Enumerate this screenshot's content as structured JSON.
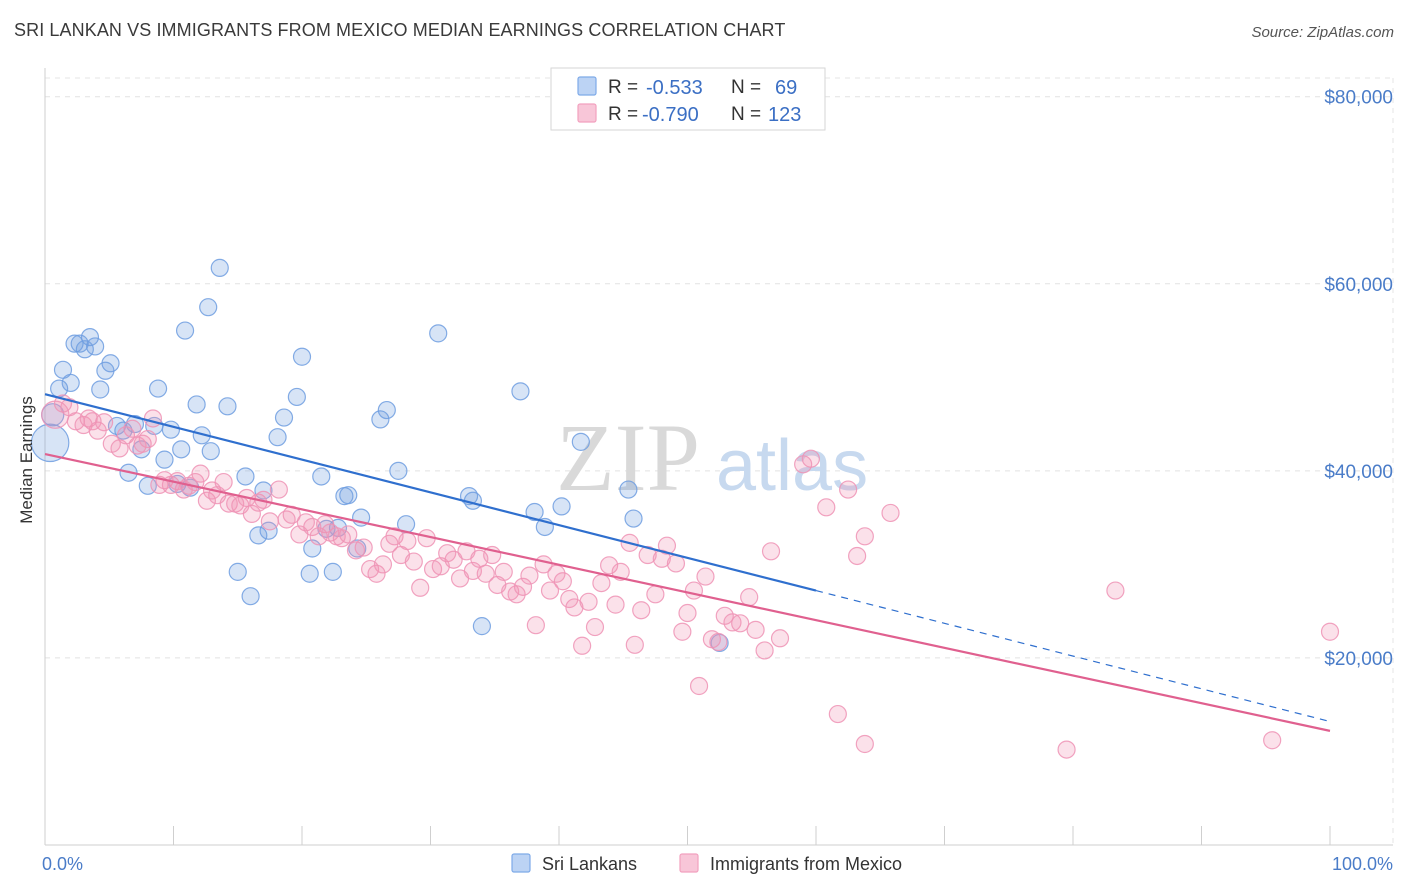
{
  "header": {
    "title": "SRI LANKAN VS IMMIGRANTS FROM MEXICO MEDIAN EARNINGS CORRELATION CHART",
    "source": "Source: ZipAtlas.com"
  },
  "watermark": {
    "zip": "ZIP",
    "atlas": "atlas"
  },
  "legend": {
    "r_label": "R =",
    "n_label": "N =",
    "rows": [
      {
        "r": "-0.533",
        "n": "69",
        "color": "#7eaae8"
      },
      {
        "r": "-0.790",
        "n": "123",
        "color": "#f2a1bf"
      }
    ]
  },
  "chart_data": {
    "type": "scatter",
    "title": "SRI LANKAN VS IMMIGRANTS FROM MEXICO MEDIAN EARNINGS CORRELATION CHART",
    "xlabel": "",
    "ylabel": "Median Earnings",
    "xlim": [
      0,
      100
    ],
    "ylim": [
      0,
      82000
    ],
    "x_tick_labels": [
      "0.0%",
      "100.0%"
    ],
    "y_ticks": [
      20000,
      40000,
      60000,
      80000
    ],
    "y_tick_labels": [
      "$20,000",
      "$40,000",
      "$60,000",
      "$80,000"
    ],
    "grid": true,
    "legend_position": "top-center",
    "series": [
      {
        "name": "Sri Lankans",
        "color": "#6f9ee0",
        "line_color": "#2f6fce",
        "trend": {
          "x0": 0,
          "y0": 48200,
          "x1": 60,
          "y1": 27200,
          "dashed_to_x": 100,
          "dashed_to_y": 13200
        },
        "points": [
          [
            0.4,
            43000,
            2.2
          ],
          [
            0.6,
            46000,
            1.3
          ],
          [
            1.1,
            48800,
            1.0
          ],
          [
            1.4,
            50800,
            1.0
          ],
          [
            2.0,
            49400,
            1.0
          ],
          [
            2.3,
            53600,
            1.0
          ],
          [
            2.7,
            53600,
            1.0
          ],
          [
            3.1,
            53000,
            1.0
          ],
          [
            3.5,
            54300,
            1.0
          ],
          [
            3.9,
            53300,
            1.0
          ],
          [
            4.3,
            48700,
            1.0
          ],
          [
            4.7,
            50700,
            1.0
          ],
          [
            5.1,
            51500,
            1.0
          ],
          [
            5.6,
            44800,
            1.0
          ],
          [
            6.1,
            44300,
            1.0
          ],
          [
            6.5,
            39800,
            1.0
          ],
          [
            7.0,
            45000,
            1.0
          ],
          [
            7.5,
            42300,
            1.0
          ],
          [
            8.0,
            38400,
            1.0
          ],
          [
            8.5,
            44800,
            1.0
          ],
          [
            8.8,
            48800,
            1.0
          ],
          [
            9.3,
            41200,
            1.0
          ],
          [
            9.8,
            44400,
            1.0
          ],
          [
            10.3,
            38600,
            1.0
          ],
          [
            10.6,
            42300,
            1.0
          ],
          [
            10.9,
            55000,
            1.0
          ],
          [
            11.3,
            38200,
            1.0
          ],
          [
            11.8,
            47100,
            1.0
          ],
          [
            12.2,
            43800,
            1.0
          ],
          [
            12.7,
            57500,
            1.0
          ],
          [
            12.9,
            42100,
            1.0
          ],
          [
            13.6,
            61700,
            1.0
          ],
          [
            14.2,
            46900,
            1.0
          ],
          [
            15.0,
            29200,
            1.0
          ],
          [
            15.6,
            39400,
            1.0
          ],
          [
            16.0,
            26600,
            1.0
          ],
          [
            16.6,
            33100,
            1.0
          ],
          [
            17.0,
            37900,
            1.0
          ],
          [
            17.4,
            33600,
            1.0
          ],
          [
            18.1,
            43600,
            1.0
          ],
          [
            18.6,
            45700,
            1.0
          ],
          [
            19.6,
            47900,
            1.0
          ],
          [
            20.0,
            52200,
            1.0
          ],
          [
            20.6,
            29000,
            1.0
          ],
          [
            20.8,
            31700,
            1.0
          ],
          [
            21.5,
            39400,
            1.0
          ],
          [
            21.9,
            33800,
            1.0
          ],
          [
            22.4,
            29200,
            1.0
          ],
          [
            22.8,
            33900,
            1.0
          ],
          [
            23.3,
            37300,
            1.0
          ],
          [
            23.6,
            37400,
            1.0
          ],
          [
            24.3,
            31700,
            1.0
          ],
          [
            24.6,
            35000,
            1.0
          ],
          [
            26.1,
            45500,
            1.0
          ],
          [
            26.6,
            46500,
            1.0
          ],
          [
            27.5,
            40000,
            1.0
          ],
          [
            28.1,
            34300,
            1.0
          ],
          [
            30.6,
            54700,
            1.0
          ],
          [
            33.0,
            37300,
            1.0
          ],
          [
            33.3,
            36800,
            1.0
          ],
          [
            34.0,
            23400,
            1.0
          ],
          [
            37.0,
            48500,
            1.0
          ],
          [
            38.1,
            35600,
            1.0
          ],
          [
            38.9,
            34000,
            1.0
          ],
          [
            40.2,
            36200,
            1.0
          ],
          [
            41.7,
            43100,
            1.0
          ],
          [
            45.4,
            38000,
            1.0
          ],
          [
            45.8,
            34900,
            1.0
          ],
          [
            52.5,
            21600,
            1.0
          ]
        ]
      },
      {
        "name": "Immigrants from Mexico",
        "color": "#ef93b5",
        "line_color": "#e0608f",
        "trend": {
          "x0": 0,
          "y0": 41800,
          "x1": 100,
          "y1": 12200
        },
        "points": [
          [
            0.8,
            46000,
            1.6
          ],
          [
            1.4,
            47200,
            1.0
          ],
          [
            1.9,
            46800,
            1.0
          ],
          [
            2.4,
            45300,
            1.0
          ],
          [
            3.0,
            44900,
            1.0
          ],
          [
            3.4,
            45600,
            1.0
          ],
          [
            3.7,
            45300,
            1.0
          ],
          [
            4.1,
            44300,
            1.0
          ],
          [
            4.6,
            45200,
            1.0
          ],
          [
            5.2,
            42900,
            1.0
          ],
          [
            5.8,
            42400,
            1.0
          ],
          [
            6.3,
            43800,
            1.0
          ],
          [
            6.8,
            44500,
            1.0
          ],
          [
            7.2,
            42700,
            1.0
          ],
          [
            7.6,
            42900,
            1.0
          ],
          [
            8.0,
            43400,
            1.0
          ],
          [
            8.4,
            45600,
            1.0
          ],
          [
            8.9,
            38500,
            1.0
          ],
          [
            9.3,
            39000,
            1.0
          ],
          [
            9.8,
            38500,
            1.0
          ],
          [
            10.3,
            38900,
            1.0
          ],
          [
            10.8,
            38000,
            1.0
          ],
          [
            11.2,
            38400,
            1.0
          ],
          [
            11.7,
            38800,
            1.0
          ],
          [
            12.1,
            39700,
            1.0
          ],
          [
            12.6,
            36800,
            1.0
          ],
          [
            13.0,
            37900,
            1.0
          ],
          [
            13.4,
            37400,
            1.0
          ],
          [
            13.9,
            38800,
            1.0
          ],
          [
            14.3,
            36500,
            1.0
          ],
          [
            14.8,
            36500,
            1.0
          ],
          [
            15.2,
            36300,
            1.0
          ],
          [
            15.7,
            37100,
            1.0
          ],
          [
            16.1,
            35400,
            1.0
          ],
          [
            16.6,
            36600,
            1.0
          ],
          [
            17.0,
            36900,
            1.0
          ],
          [
            17.5,
            34600,
            1.0
          ],
          [
            18.2,
            38000,
            1.0
          ],
          [
            18.8,
            34800,
            1.0
          ],
          [
            19.2,
            35300,
            1.0
          ],
          [
            19.8,
            33200,
            1.0
          ],
          [
            20.3,
            34500,
            1.0
          ],
          [
            20.8,
            34000,
            1.0
          ],
          [
            21.3,
            33000,
            1.0
          ],
          [
            21.8,
            34300,
            1.0
          ],
          [
            22.2,
            33400,
            1.0
          ],
          [
            22.7,
            33000,
            1.0
          ],
          [
            23.1,
            32800,
            1.0
          ],
          [
            23.6,
            33200,
            1.0
          ],
          [
            24.2,
            31500,
            1.0
          ],
          [
            24.8,
            31800,
            1.0
          ],
          [
            25.3,
            29500,
            1.0
          ],
          [
            25.8,
            29000,
            1.0
          ],
          [
            26.3,
            30000,
            1.0
          ],
          [
            26.8,
            32200,
            1.0
          ],
          [
            27.2,
            33000,
            1.0
          ],
          [
            27.7,
            31000,
            1.0
          ],
          [
            28.2,
            32500,
            1.0
          ],
          [
            28.7,
            30300,
            1.0
          ],
          [
            29.2,
            27500,
            1.0
          ],
          [
            29.7,
            32800,
            1.0
          ],
          [
            30.2,
            29500,
            1.0
          ],
          [
            30.8,
            29800,
            1.0
          ],
          [
            31.3,
            31200,
            1.0
          ],
          [
            31.8,
            30500,
            1.0
          ],
          [
            32.3,
            28500,
            1.0
          ],
          [
            32.8,
            31400,
            1.0
          ],
          [
            33.3,
            29300,
            1.0
          ],
          [
            33.8,
            30600,
            1.0
          ],
          [
            34.3,
            29000,
            1.0
          ],
          [
            34.8,
            31000,
            1.0
          ],
          [
            35.2,
            27800,
            1.0
          ],
          [
            35.7,
            29200,
            1.0
          ],
          [
            36.2,
            27100,
            1.0
          ],
          [
            36.7,
            26800,
            1.0
          ],
          [
            37.2,
            27600,
            1.0
          ],
          [
            37.7,
            28800,
            1.0
          ],
          [
            38.2,
            23500,
            1.0
          ],
          [
            38.8,
            30000,
            1.0
          ],
          [
            39.3,
            27200,
            1.0
          ],
          [
            39.8,
            29000,
            1.0
          ],
          [
            40.3,
            28200,
            1.0
          ],
          [
            40.8,
            26300,
            1.0
          ],
          [
            41.2,
            25400,
            1.0
          ],
          [
            41.8,
            21300,
            1.0
          ],
          [
            42.3,
            26000,
            1.0
          ],
          [
            42.8,
            23300,
            1.0
          ],
          [
            43.3,
            28000,
            1.0
          ],
          [
            43.9,
            29900,
            1.0
          ],
          [
            44.4,
            25700,
            1.0
          ],
          [
            44.8,
            29200,
            1.0
          ],
          [
            45.5,
            32300,
            1.0
          ],
          [
            45.9,
            21400,
            1.0
          ],
          [
            46.4,
            25100,
            1.0
          ],
          [
            46.9,
            31000,
            1.0
          ],
          [
            47.5,
            26800,
            1.0
          ],
          [
            48.0,
            30600,
            1.0
          ],
          [
            48.4,
            32000,
            1.0
          ],
          [
            49.1,
            30100,
            1.0
          ],
          [
            49.6,
            22800,
            1.0
          ],
          [
            50.0,
            24800,
            1.0
          ],
          [
            50.5,
            27200,
            1.0
          ],
          [
            50.9,
            17000,
            1.0
          ],
          [
            51.4,
            28700,
            1.0
          ],
          [
            51.9,
            22000,
            1.0
          ],
          [
            52.4,
            21700,
            1.0
          ],
          [
            52.9,
            24500,
            1.0
          ],
          [
            53.5,
            23800,
            1.0
          ],
          [
            54.1,
            23700,
            1.0
          ],
          [
            54.8,
            26500,
            1.0
          ],
          [
            55.3,
            23000,
            1.0
          ],
          [
            56.0,
            20800,
            1.0
          ],
          [
            56.5,
            31400,
            1.0
          ],
          [
            57.2,
            22100,
            1.0
          ],
          [
            59.0,
            40700,
            1.0
          ],
          [
            59.6,
            41300,
            1.0
          ],
          [
            60.8,
            36100,
            1.0
          ],
          [
            61.7,
            14000,
            1.0
          ],
          [
            62.5,
            38000,
            1.0
          ],
          [
            63.2,
            30900,
            1.0
          ],
          [
            63.8,
            10800,
            1.0
          ],
          [
            63.8,
            33000,
            1.0
          ],
          [
            65.8,
            35500,
            1.0
          ],
          [
            79.5,
            10200,
            1.0
          ],
          [
            83.3,
            27200,
            1.0
          ],
          [
            95.5,
            11200,
            1.0
          ],
          [
            100.0,
            22800,
            1.0
          ]
        ]
      }
    ]
  }
}
